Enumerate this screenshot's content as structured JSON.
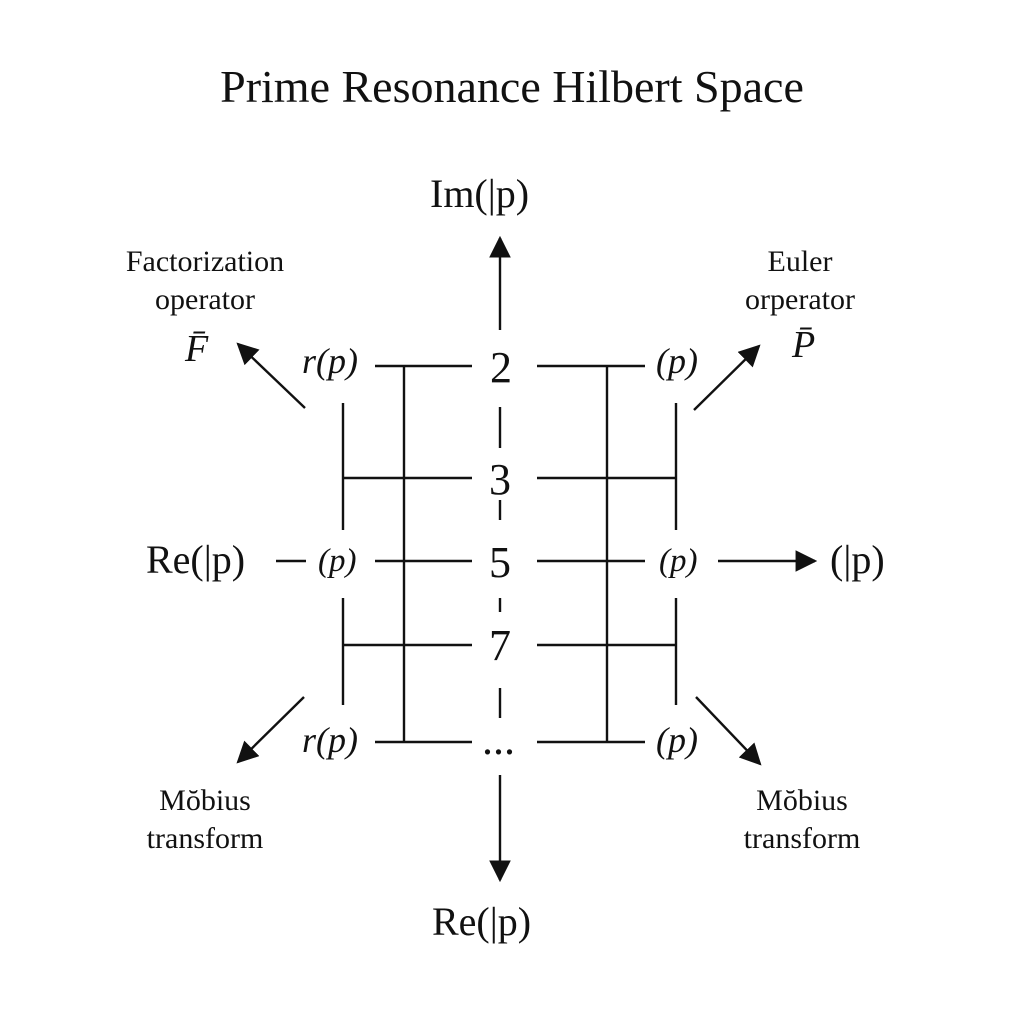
{
  "title": "Prime Resonance Hilbert Space",
  "axes": {
    "top": "Im(|p)",
    "bottom": "Re(|p)",
    "left": "Re(|p)",
    "right": "(|p)"
  },
  "primes": [
    "2",
    "3",
    "5",
    "7",
    "..."
  ],
  "node_labels": {
    "left_top": "r(p)",
    "left_mid": "(p)",
    "left_bottom": "r(p)",
    "right_top": "(p)",
    "right_mid": "(p)",
    "right_bottom": "(p)"
  },
  "operators": {
    "factorization": {
      "line1": "Factorization",
      "line2": "operator",
      "symbol": "F̄"
    },
    "euler": {
      "line1": "Euler",
      "line2": "orperator",
      "symbol": "P̄"
    },
    "mobius_left": {
      "line1": "Mŏbius",
      "line2": "transform"
    },
    "mobius_right": {
      "line1": "Mŏbius",
      "line2": "transform"
    }
  },
  "colors": {
    "ink": "#111111",
    "background": "#ffffff"
  }
}
